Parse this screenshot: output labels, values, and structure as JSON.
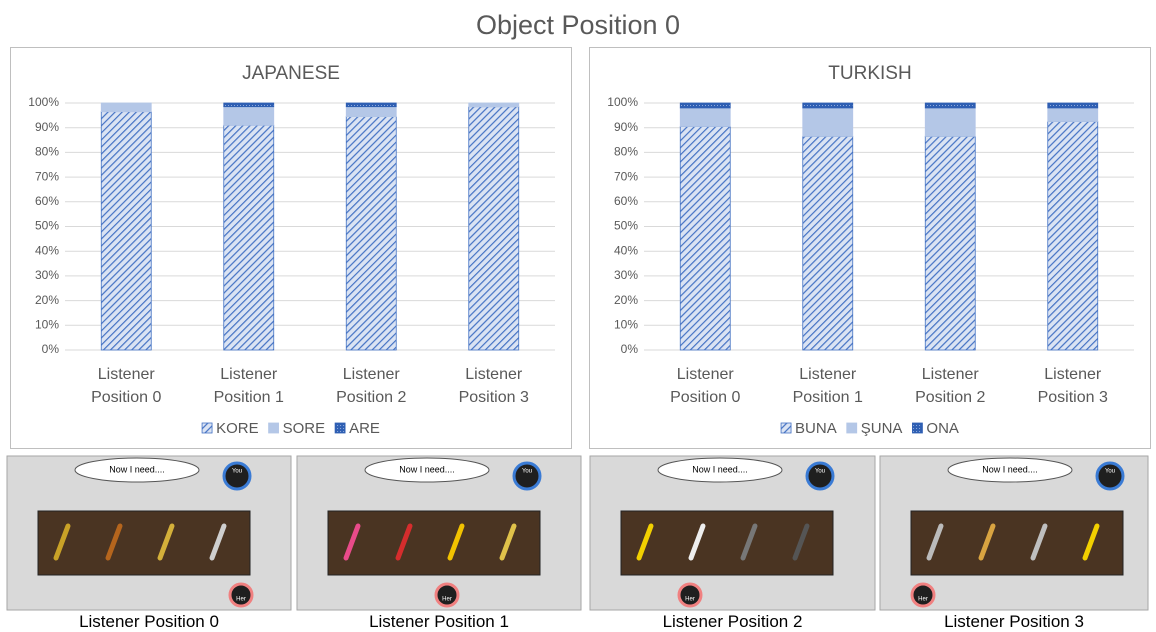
{
  "title": "Object Position 0",
  "chart_data": [
    {
      "type": "stacked-bar",
      "title": "JAPANESE",
      "categories": [
        "Listener Position 0",
        "Listener Position 1",
        "Listener Position 2",
        "Listener Position 3"
      ],
      "series": [
        {
          "name": "KORE",
          "color": "#4472c4",
          "hatch": true,
          "values": [
            96.5,
            91,
            94.5,
            98.5
          ]
        },
        {
          "name": "SORE",
          "color": "#b4c7e7",
          "values": [
            3.5,
            7.5,
            4,
            1.5
          ]
        },
        {
          "name": "ARE",
          "color": "#2f5fb3",
          "values": [
            0,
            1.5,
            1.5,
            0
          ]
        }
      ],
      "ylim": [
        0,
        100
      ],
      "yticks": [
        {
          "value": 0,
          "label": "0%"
        },
        {
          "value": 10,
          "label": "10%"
        },
        {
          "value": 20,
          "label": "20%"
        },
        {
          "value": 30,
          "label": "30%"
        },
        {
          "value": 40,
          "label": "40%"
        },
        {
          "value": 50,
          "label": "50%"
        },
        {
          "value": 60,
          "label": "60%"
        },
        {
          "value": 70,
          "label": "70%"
        },
        {
          "value": 80,
          "label": "80%"
        },
        {
          "value": 90,
          "label": "90%"
        },
        {
          "value": 100,
          "label": "100%"
        }
      ],
      "grid": true,
      "legend": "bottom"
    },
    {
      "type": "stacked-bar",
      "title": "TURKISH",
      "categories": [
        "Listener Position 0",
        "Listener Position 1",
        "Listener Position 2",
        "Listener Position 3"
      ],
      "series": [
        {
          "name": "BUNA",
          "color": "#4472c4",
          "hatch": true,
          "values": [
            90.5,
            86.5,
            86.5,
            92.5
          ]
        },
        {
          "name": "ŞUNA",
          "color": "#b4c7e7",
          "values": [
            7.5,
            11.5,
            11.5,
            5.5
          ]
        },
        {
          "name": "ONA",
          "color": "#2f5fb3",
          "values": [
            2,
            2,
            2,
            2
          ]
        }
      ],
      "ylim": [
        0,
        100
      ],
      "yticks": [
        {
          "value": 0,
          "label": "0%"
        },
        {
          "value": 10,
          "label": "10%"
        },
        {
          "value": 20,
          "label": "20%"
        },
        {
          "value": 30,
          "label": "30%"
        },
        {
          "value": 40,
          "label": "40%"
        },
        {
          "value": 50,
          "label": "50%"
        },
        {
          "value": 60,
          "label": "60%"
        },
        {
          "value": 70,
          "label": "70%"
        },
        {
          "value": 80,
          "label": "80%"
        },
        {
          "value": 90,
          "label": "90%"
        },
        {
          "value": 100,
          "label": "100%"
        }
      ],
      "grid": true,
      "legend": "bottom"
    }
  ],
  "panels": [
    {
      "caption": "Listener Position 0",
      "speech": "Now I need....",
      "speaker": "You",
      "listener": "Her"
    },
    {
      "caption": "Listener Position 1",
      "speech": "Now I need....",
      "speaker": "You",
      "listener": "Her"
    },
    {
      "caption": "Listener Position 2",
      "speech": "Now I need....",
      "speaker": "You",
      "listener": "Her"
    },
    {
      "caption": "Listener Position 3",
      "speech": "Now I need....",
      "speaker": "You",
      "listener": "Her"
    }
  ]
}
